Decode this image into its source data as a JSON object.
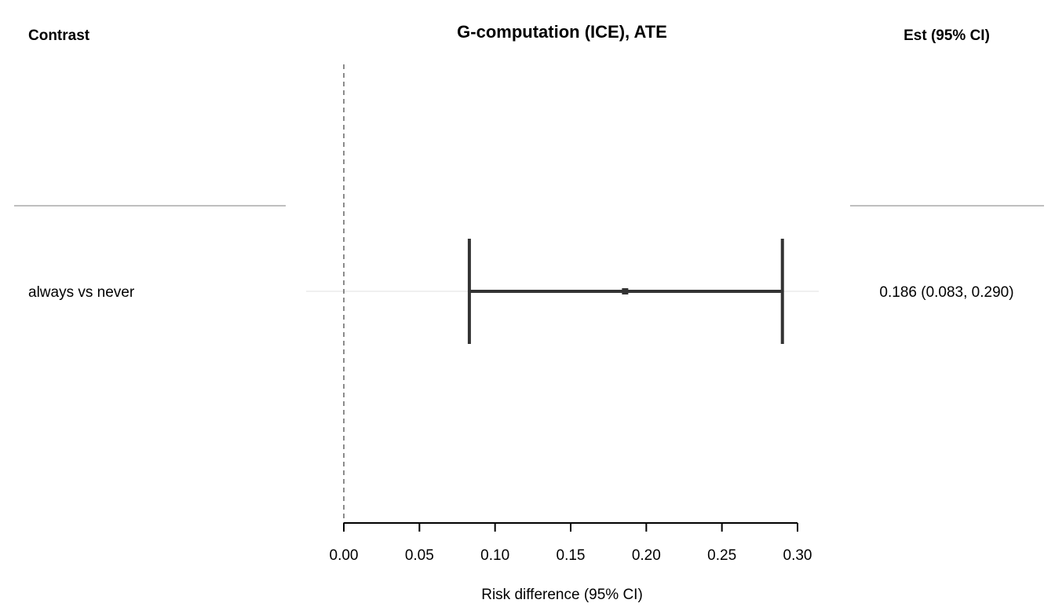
{
  "chart_data": {
    "type": "forest",
    "title": "G-computation (ICE), ATE",
    "left_header": "Contrast",
    "right_header": "Est (95% CI)",
    "xlabel": "Risk difference (95% CI)",
    "xlim": [
      0,
      0.3
    ],
    "xticks": [
      0,
      0.05,
      0.1,
      0.15,
      0.2,
      0.25,
      0.3
    ],
    "xtick_labels": [
      "0.00",
      "0.05",
      "0.10",
      "0.15",
      "0.20",
      "0.25",
      "0.30"
    ],
    "reference_line": 0,
    "rows": [
      {
        "label": "always vs never",
        "estimate": 0.186,
        "lower": 0.083,
        "upper": 0.29,
        "text": "0.186 (0.083, 0.290)"
      }
    ],
    "colors": {
      "mark": "#333333",
      "reference": "#666666",
      "separator": "#aaaaaa",
      "rowline": "#e0e0e0"
    }
  }
}
